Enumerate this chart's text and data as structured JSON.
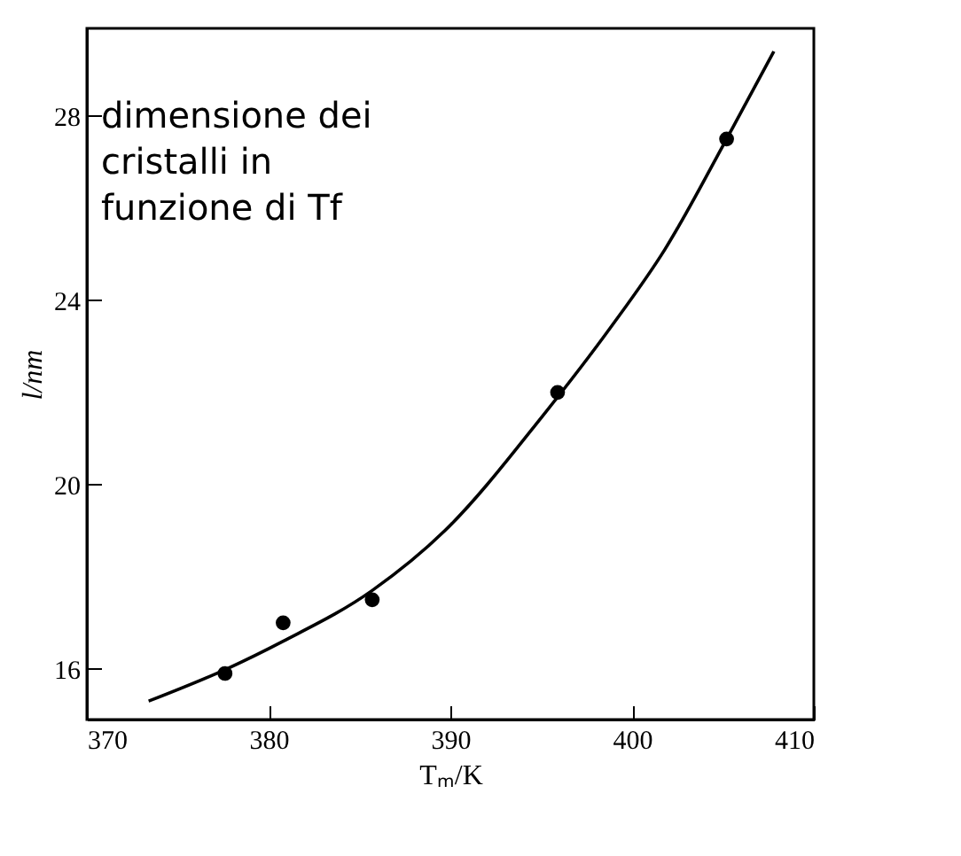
{
  "chart_data": {
    "type": "scatter",
    "xlabel": "Tₘ/K",
    "ylabel": "l/nm",
    "annotations": [
      "dimensione dei cristalli in funzione di Tf"
    ],
    "xlim": [
      370,
      410
    ],
    "xticks": [
      370,
      380,
      390,
      400,
      410
    ],
    "ylim": [
      14.9,
      29.9
    ],
    "yticks": [
      16,
      20,
      24,
      28
    ],
    "grid": false,
    "series": [
      {
        "type": "scatter",
        "color": "#000000",
        "marker": "circle",
        "x": [
          377.6,
          380.8,
          385.7,
          395.9,
          405.2
        ],
        "values": [
          15.9,
          17.0,
          17.5,
          22.0,
          27.5
        ]
      },
      {
        "type": "line",
        "color": "#000000",
        "line_style": "solid",
        "marker": "none",
        "x": [
          373.4,
          377.7,
          380.8,
          385.7,
          389.7,
          395.1,
          398.8,
          401.8,
          405.2,
          407.8
        ],
        "values": [
          15.3,
          16.0,
          16.6,
          17.7,
          19.0,
          21.5,
          23.4,
          25.1,
          27.5,
          29.4
        ]
      }
    ]
  }
}
